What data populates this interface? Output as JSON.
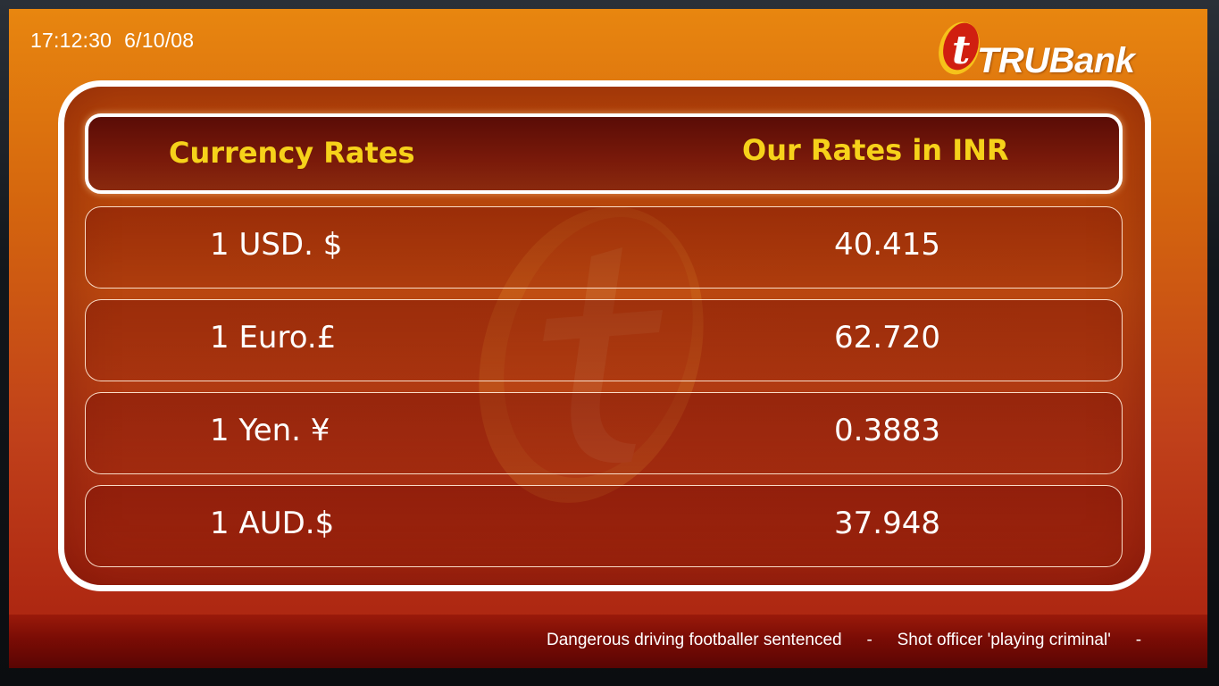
{
  "clock": {
    "time": "17:12:30",
    "date": "6/10/08"
  },
  "brand": {
    "name": "TRUBank",
    "logo_letter": "t",
    "colors": {
      "orange": "#f08a12",
      "red": "#c8200e",
      "gold": "#f6d21a"
    }
  },
  "table": {
    "header": {
      "left": "Currency Rates",
      "right": "Our Rates in INR"
    },
    "rows": [
      {
        "currency": "1 USD. $",
        "rate": "40.415"
      },
      {
        "currency": "1 Euro.£",
        "rate": "62.720"
      },
      {
        "currency": "1 Yen. ¥",
        "rate": "0.3883"
      },
      {
        "currency": "1 AUD.$",
        "rate": "37.948"
      }
    ]
  },
  "ticker": {
    "items": [
      "Dangerous driving footballer sentenced",
      "Shot officer 'playing criminal'"
    ],
    "separator": "-"
  }
}
